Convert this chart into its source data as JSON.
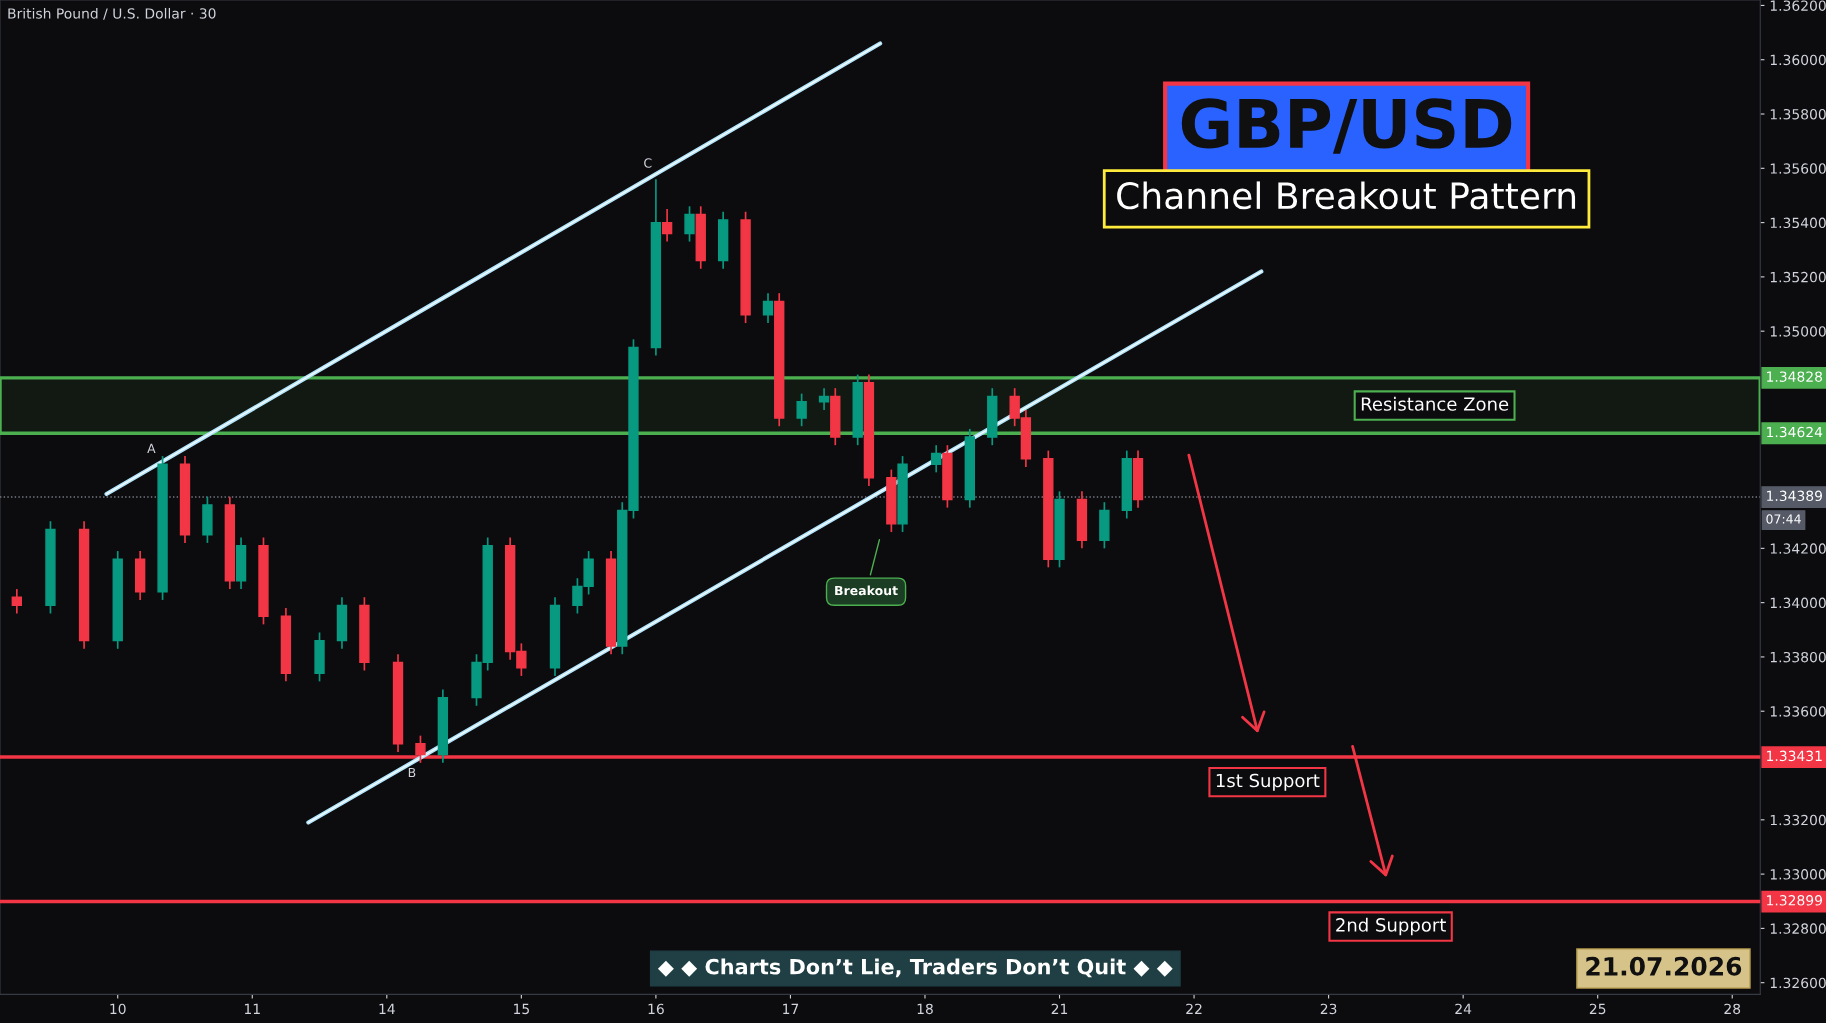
{
  "chart_data": {
    "type": "candlestick",
    "title": "British Pound / U.S. Dollar · 30",
    "subtitle": "Channel Breakout Pattern",
    "categories": [
      null,
      null,
      null,
      null,
      null,
      null,
      null,
      null,
      null,
      null,
      "10",
      null,
      null,
      null,
      null,
      null,
      null,
      null,
      null,
      null,
      null,
      null,
      "11",
      null,
      null,
      null,
      null,
      null,
      null,
      null,
      null,
      null,
      null,
      null,
      "14",
      null,
      null,
      null,
      null,
      null,
      null,
      null,
      null,
      null,
      null,
      null,
      "15",
      null,
      null,
      null,
      null,
      null,
      null,
      null,
      null,
      null,
      null,
      null,
      "16",
      null,
      null,
      null,
      null,
      null,
      null,
      null,
      null,
      null,
      null,
      null,
      "17",
      null,
      null,
      null,
      null,
      null,
      null,
      null,
      null,
      null,
      null,
      null,
      "18",
      null,
      null,
      null,
      null,
      null,
      null,
      null,
      null,
      null,
      null,
      null,
      "21",
      null,
      null,
      null,
      null,
      null,
      null,
      null,
      null,
      null,
      null,
      null,
      "22",
      null,
      null,
      null,
      null,
      null,
      null,
      null,
      null,
      null,
      null,
      null,
      "23",
      null,
      null,
      null,
      null,
      null,
      null,
      null,
      null,
      null,
      null,
      null,
      "24",
      null,
      null,
      null,
      null,
      null,
      null,
      null,
      null,
      null,
      null,
      null,
      "25",
      null,
      null,
      null,
      null,
      null,
      null,
      null,
      null,
      null,
      null,
      null,
      "28",
      null,
      null
    ],
    "ohlc": [
      null,
      [
        1.3402,
        1.3405,
        1.3396,
        1.3399
      ],
      null,
      null,
      [
        1.3399,
        1.343,
        1.3396,
        1.3427
      ],
      null,
      null,
      [
        1.3427,
        1.343,
        1.3383,
        1.3386
      ],
      null,
      null,
      [
        1.3386,
        1.3419,
        1.3383,
        1.3416
      ],
      null,
      [
        1.3416,
        1.3419,
        1.3401,
        1.3404
      ],
      null,
      [
        1.3404,
        1.3454,
        1.3401,
        1.3451
      ],
      null,
      [
        1.3451,
        1.3454,
        1.3422,
        1.3425
      ],
      null,
      [
        1.3425,
        1.3439,
        1.3422,
        1.3436
      ],
      null,
      [
        1.3436,
        1.3439,
        1.3405,
        1.3408
      ],
      [
        1.3408,
        1.3424,
        1.3405,
        1.3421
      ],
      null,
      [
        1.3421,
        1.3424,
        1.3392,
        1.3395
      ],
      null,
      [
        1.3395,
        1.3398,
        1.3371,
        1.3374
      ],
      null,
      null,
      [
        1.3374,
        1.3389,
        1.3371,
        1.3386
      ],
      null,
      [
        1.3386,
        1.3402,
        1.3383,
        1.3399
      ],
      null,
      [
        1.3399,
        1.3402,
        1.3375,
        1.3378
      ],
      null,
      null,
      [
        1.3378,
        1.3381,
        1.3345,
        1.3348
      ],
      null,
      [
        1.3348,
        1.3351,
        1.3341,
        1.3344
      ],
      null,
      [
        1.3344,
        1.3368,
        1.3341,
        1.3365
      ],
      null,
      null,
      [
        1.3365,
        1.3381,
        1.3362,
        1.3378
      ],
      [
        1.3378,
        1.3424,
        1.3375,
        1.3421
      ],
      null,
      [
        1.3421,
        1.3424,
        1.3379,
        1.3382
      ],
      [
        1.3382,
        1.3385,
        1.3373,
        1.3376
      ],
      null,
      null,
      [
        1.3376,
        1.3402,
        1.3373,
        1.3399
      ],
      null,
      [
        1.3399,
        1.3409,
        1.3396,
        1.3406
      ],
      [
        1.3406,
        1.3419,
        1.3403,
        1.3416
      ],
      null,
      [
        1.3416,
        1.3419,
        1.3381,
        1.3384
      ],
      [
        1.3384,
        1.3437,
        1.3381,
        1.3434
      ],
      [
        1.3434,
        1.3497,
        1.3431,
        1.3494
      ],
      null,
      [
        1.3494,
        1.3556,
        1.3491,
        1.354
      ],
      [
        1.354,
        1.3545,
        1.3533,
        1.3536
      ],
      null,
      [
        1.3536,
        1.3546,
        1.3533,
        1.3543
      ],
      [
        1.3543,
        1.3546,
        1.3523,
        1.3526
      ],
      null,
      [
        1.3526,
        1.3544,
        1.3523,
        1.3541
      ],
      null,
      [
        1.3541,
        1.3544,
        1.3503,
        1.3506
      ],
      null,
      [
        1.3506,
        1.3514,
        1.3503,
        1.3511
      ],
      [
        1.3511,
        1.3514,
        1.3465,
        1.3468
      ],
      null,
      [
        1.3468,
        1.3477,
        1.3465,
        1.3474
      ],
      null,
      [
        1.3474,
        1.3479,
        1.3471,
        1.3476
      ],
      [
        1.3476,
        1.3479,
        1.3458,
        1.3461
      ],
      null,
      [
        1.3461,
        1.3484,
        1.3458,
        1.3481
      ],
      [
        1.3481,
        1.3484,
        1.3443,
        1.3446
      ],
      null,
      [
        1.3446,
        1.3449,
        1.3426,
        1.3429
      ],
      [
        1.3429,
        1.3454,
        1.3426,
        1.3451
      ],
      null,
      null,
      [
        1.3451,
        1.3458,
        1.3448,
        1.3455
      ],
      [
        1.3455,
        1.3458,
        1.3435,
        1.3438
      ],
      null,
      [
        1.3438,
        1.3464,
        1.3435,
        1.3461
      ],
      null,
      [
        1.3461,
        1.3479,
        1.3458,
        1.3476
      ],
      null,
      [
        1.3476,
        1.3479,
        1.3465,
        1.3468
      ],
      [
        1.3468,
        1.3471,
        1.345,
        1.3453
      ],
      null,
      [
        1.3453,
        1.3456,
        1.3413,
        1.3416
      ],
      [
        1.3416,
        1.3441,
        1.3413,
        1.3438
      ],
      null,
      [
        1.3438,
        1.3441,
        1.342,
        1.3423
      ],
      null,
      [
        1.3423,
        1.3437,
        1.342,
        1.3434
      ],
      null,
      [
        1.3434,
        1.3456,
        1.3431,
        1.3453
      ],
      [
        1.3453,
        1.3456,
        1.3435,
        1.3438
      ],
      null,
      null,
      null,
      null,
      null,
      null,
      null,
      null,
      null,
      null,
      null,
      null,
      null,
      null,
      null,
      null,
      null,
      null,
      null,
      null,
      null,
      null,
      null,
      null,
      null,
      null,
      null,
      null,
      null,
      null,
      null,
      null,
      null,
      null,
      null,
      null,
      null,
      null,
      null,
      null,
      null,
      null,
      null,
      null,
      null,
      null,
      null,
      null,
      null,
      null,
      null,
      null,
      null,
      null,
      null
    ],
    "colors": [
      null,
      "#f23645",
      null,
      null,
      "#089981",
      null,
      null,
      "#f23645",
      null,
      null,
      "#089981",
      null,
      "#f23645",
      null,
      "#089981",
      null,
      "#f23645",
      null,
      "#089981",
      null,
      "#f23645",
      "#089981",
      null,
      "#f23645",
      null,
      "#f23645",
      null,
      null,
      "#089981",
      null,
      "#089981",
      null,
      "#f23645",
      null,
      null,
      "#f23645",
      null,
      "#f23645",
      null,
      "#089981",
      null,
      null,
      "#089981",
      "#089981",
      null,
      "#f23645",
      "#f23645",
      null,
      null,
      "#089981",
      null,
      "#089981",
      "#089981",
      null,
      "#f23645",
      "#089981",
      "#089981",
      null,
      "#089981",
      "#f23645",
      null,
      "#089981",
      "#f23645",
      null,
      "#089981",
      null,
      "#f23645",
      null,
      "#089981",
      "#f23645",
      null,
      "#089981",
      null,
      "#089981",
      "#f23645",
      null,
      "#089981",
      "#f23645",
      null,
      "#f23645",
      "#089981",
      null,
      null,
      "#089981",
      "#f23645",
      null,
      "#089981",
      null,
      "#089981",
      null,
      "#f23645",
      "#f23645",
      null,
      "#f23645",
      "#089981",
      null,
      "#f23645",
      null,
      "#089981",
      null,
      "#089981",
      "#f23645",
      null,
      null,
      null,
      null,
      null,
      null,
      null,
      null,
      null,
      null,
      null,
      null,
      null,
      null,
      null,
      null,
      null,
      null,
      null,
      null,
      null,
      null,
      null,
      null,
      null,
      null,
      null,
      null,
      null,
      null,
      null,
      null,
      null,
      null,
      null,
      null,
      null,
      null,
      null,
      null,
      null,
      null,
      null,
      null,
      null,
      null,
      null,
      null,
      null,
      null,
      null,
      null,
      null,
      null,
      null
    ],
    "series": [
      {
        "type": "line",
        "color": "#b3e5fc",
        "values": [
          null,
          null,
          null,
          null,
          null,
          null,
          null,
          null,
          null,
          1.344,
          null,
          null,
          null,
          null,
          null,
          null,
          null,
          null,
          null,
          null,
          null,
          null,
          null,
          null,
          null,
          null,
          null,
          null,
          null,
          null,
          null,
          null,
          null,
          null,
          null,
          null,
          null,
          null,
          null,
          null,
          null,
          null,
          null,
          null,
          null,
          null,
          null,
          null,
          null,
          null,
          null,
          null,
          null,
          null,
          null,
          null,
          null,
          null,
          null,
          null,
          null,
          null,
          null,
          null,
          null,
          null,
          null,
          null,
          null,
          null,
          null,
          null,
          null,
          null,
          null,
          null,
          null,
          null,
          1.3606,
          null,
          null,
          null,
          null,
          null,
          null,
          null,
          null,
          null,
          null,
          null,
          null,
          null,
          null,
          null,
          null,
          null,
          null,
          null,
          null,
          null,
          null,
          null,
          null,
          null,
          null,
          null,
          null,
          null,
          null,
          null,
          null,
          null,
          null,
          null,
          null,
          null,
          null,
          null,
          null,
          null,
          null,
          null,
          null,
          null,
          null,
          null,
          null,
          null,
          null,
          null,
          null,
          null,
          null,
          null,
          null,
          null,
          null,
          null,
          null,
          null,
          null,
          null,
          null,
          null,
          null,
          null,
          null,
          null,
          null,
          null,
          null,
          null,
          null,
          null,
          null,
          null,
          null
        ]
      },
      {
        "type": "line",
        "color": "#b3e5fc",
        "values": [
          null,
          null,
          null,
          null,
          null,
          null,
          null,
          null,
          null,
          null,
          null,
          null,
          null,
          null,
          null,
          null,
          null,
          null,
          null,
          null,
          null,
          null,
          null,
          null,
          null,
          null,
          null,
          1.3319,
          null,
          null,
          null,
          null,
          null,
          null,
          null,
          null,
          null,
          null,
          null,
          null,
          null,
          null,
          null,
          null,
          null,
          null,
          null,
          null,
          null,
          null,
          null,
          null,
          null,
          null,
          null,
          null,
          null,
          null,
          null,
          null,
          null,
          null,
          null,
          null,
          null,
          null,
          null,
          null,
          null,
          null,
          null,
          null,
          null,
          null,
          null,
          null,
          null,
          null,
          null,
          null,
          null,
          null,
          null,
          null,
          null,
          null,
          null,
          null,
          null,
          null,
          null,
          null,
          null,
          null,
          null,
          null,
          null,
          null,
          null,
          null,
          null,
          null,
          null,
          null,
          null,
          null,
          null,
          null,
          null,
          null,
          null,
          null,
          1.3522,
          null,
          null,
          null,
          null,
          null,
          null,
          null,
          null,
          null,
          null,
          null,
          null,
          null,
          null,
          null,
          null,
          null,
          null,
          null,
          null,
          null,
          null,
          null,
          null,
          null,
          null,
          null,
          null,
          null,
          null,
          null,
          null,
          null,
          null,
          null,
          null,
          null,
          null,
          null,
          null,
          null,
          null,
          null,
          null
        ]
      }
    ],
    "bands": [
      {
        "axis": "y",
        "from": 1.34624,
        "to": 1.34828,
        "label": "Resistance Zone",
        "color": "#4caf50"
      }
    ],
    "ref_lines": [
      {
        "axis": "y",
        "value": 1.33431,
        "label": "1st Support",
        "color": "#f23645"
      },
      {
        "axis": "y",
        "value": 1.32899,
        "label": "2nd Support",
        "color": "#f23645"
      },
      {
        "axis": "y",
        "value": 1.34389,
        "color": "#787b86",
        "line_style": "dotted"
      }
    ],
    "annotations": [
      "A",
      "B",
      "C",
      "Breakout",
      "GBP/USD",
      "◆ ◆ Charts Don’t Lie, Traders Don’t Quit ◆ ◆",
      "21.07.2026",
      "07:44",
      "1.34828",
      "1.34624",
      "1.34389",
      "1.33431",
      "1.32899"
    ],
    "ylim": [
      1.32557,
      1.3622
    ],
    "yticks": [
      {
        "value": 1.326,
        "label": "1.32600"
      },
      {
        "value": 1.328,
        "label": "1.32800"
      },
      {
        "value": 1.33,
        "label": "1.33000"
      },
      {
        "value": 1.332,
        "label": "1.33200"
      },
      {
        "value": 1.336,
        "label": "1.33600"
      },
      {
        "value": 1.338,
        "label": "1.33800"
      },
      {
        "value": 1.34,
        "label": "1.34000"
      },
      {
        "value": 1.342,
        "label": "1.34200"
      },
      {
        "value": 1.35,
        "label": "1.35000"
      },
      {
        "value": 1.352,
        "label": "1.35200"
      },
      {
        "value": 1.354,
        "label": "1.35400"
      },
      {
        "value": 1.356,
        "label": "1.35600"
      },
      {
        "value": 1.358,
        "label": "1.35800"
      },
      {
        "value": 1.36,
        "label": "1.36000"
      },
      {
        "value": 1.362,
        "label": "1.36200"
      }
    ],
    "grid": false
  }
}
